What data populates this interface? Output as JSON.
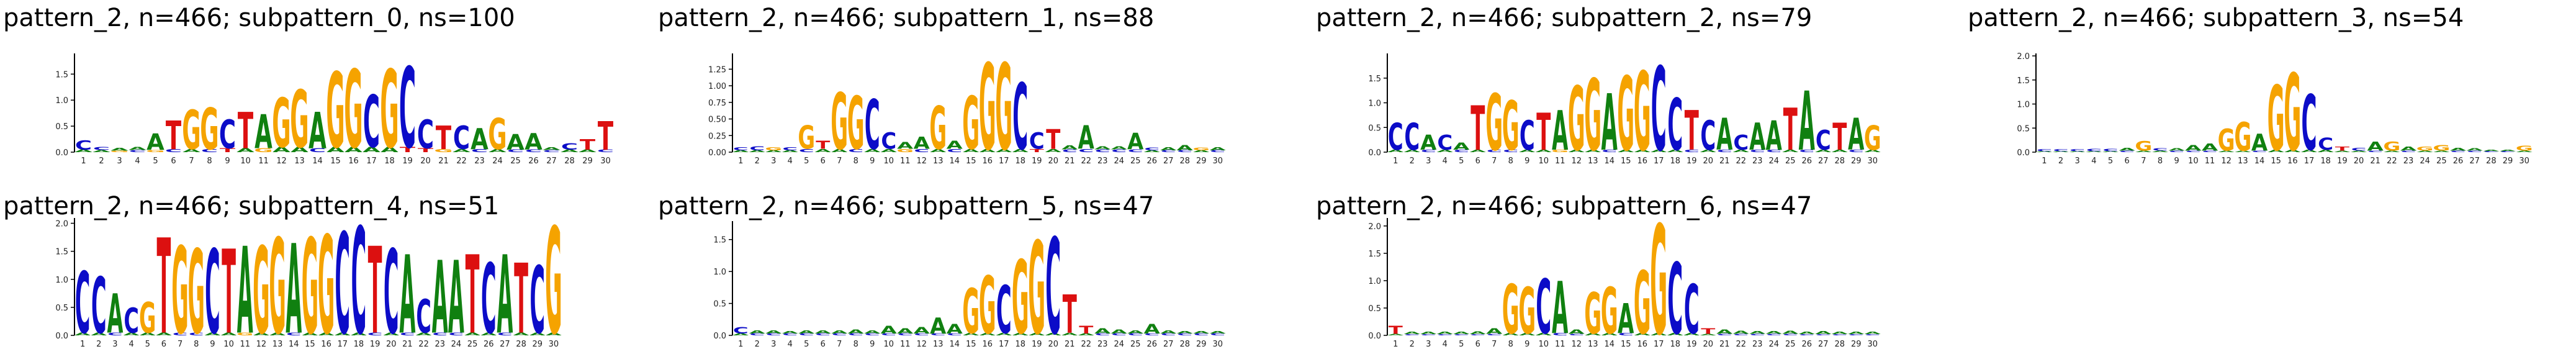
{
  "colors": {
    "A": "#108010",
    "C": "#0c0cc8",
    "G": "#f5a300",
    "T": "#dc1010"
  },
  "chart_data": [
    {
      "type": "sequence-logo",
      "title": "pattern_2, n=466; subpattern_0, ns=100",
      "x_ticks": [
        "1",
        "2",
        "3",
        "4",
        "5",
        "6",
        "7",
        "8",
        "9",
        "10",
        "11",
        "12",
        "13",
        "14",
        "15",
        "16",
        "17",
        "18",
        "19",
        "20",
        "21",
        "22",
        "23",
        "24",
        "25",
        "26",
        "27",
        "28",
        "29",
        "30"
      ],
      "y_ticks": [
        "0.0",
        "0.5",
        "1.0",
        "1.5"
      ],
      "ylim": [
        0,
        1.85
      ],
      "positions": [
        {
          "C": 0.18,
          "A": 0.05
        },
        {
          "C": 0.06,
          "A": 0.04
        },
        {
          "A": 0.05,
          "G": 0.03
        },
        {
          "A": 0.06,
          "C": 0.04
        },
        {
          "A": 0.32,
          "G": 0.04
        },
        {
          "T": 0.55,
          "C": 0.06
        },
        {
          "G": 0.75,
          "A": 0.06
        },
        {
          "G": 0.8,
          "C": 0.06
        },
        {
          "C": 0.55,
          "T": 0.08
        },
        {
          "T": 0.7,
          "A": 0.08
        },
        {
          "A": 0.65,
          "G": 0.08
        },
        {
          "G": 0.95,
          "A": 0.1
        },
        {
          "G": 1.1,
          "A": 0.1
        },
        {
          "A": 0.7,
          "C": 0.08
        },
        {
          "G": 1.45,
          "A": 0.1
        },
        {
          "G": 1.5,
          "A": 0.1
        },
        {
          "C": 1.0,
          "A": 0.1
        },
        {
          "G": 1.5,
          "A": 0.1
        },
        {
          "C": 1.55,
          "T": 0.1
        },
        {
          "C": 0.55,
          "T": 0.08
        },
        {
          "T": 0.45,
          "G": 0.06
        },
        {
          "C": 0.45,
          "A": 0.06
        },
        {
          "A": 0.4,
          "C": 0.06
        },
        {
          "G": 0.6,
          "A": 0.06
        },
        {
          "A": 0.3,
          "C": 0.05
        },
        {
          "A": 0.32,
          "C": 0.05
        },
        {
          "A": 0.05,
          "C": 0.04
        },
        {
          "C": 0.12,
          "A": 0.05
        },
        {
          "T": 0.2,
          "A": 0.05
        },
        {
          "T": 0.55,
          "C": 0.05
        }
      ]
    },
    {
      "type": "sequence-logo",
      "title": "pattern_2, n=466; subpattern_1, ns=88",
      "x_ticks": [
        "1",
        "2",
        "3",
        "4",
        "5",
        "6",
        "7",
        "8",
        "9",
        "10",
        "11",
        "12",
        "13",
        "14",
        "15",
        "16",
        "17",
        "18",
        "19",
        "20",
        "21",
        "22",
        "23",
        "24",
        "25",
        "26",
        "27",
        "28",
        "29",
        "30"
      ],
      "y_ticks": [
        "0.00",
        "0.25",
        "0.50",
        "0.75",
        "1.00",
        "1.25"
      ],
      "ylim": [
        0,
        1.45
      ],
      "positions": [
        {
          "C": 0.05,
          "A": 0.03
        },
        {
          "C": 0.06,
          "A": 0.03
        },
        {
          "G": 0.05,
          "A": 0.03
        },
        {
          "C": 0.05,
          "A": 0.03
        },
        {
          "G": 0.35,
          "C": 0.05
        },
        {
          "T": 0.12,
          "A": 0.05
        },
        {
          "G": 0.85,
          "A": 0.05
        },
        {
          "G": 0.8,
          "C": 0.05
        },
        {
          "C": 0.75,
          "A": 0.05
        },
        {
          "C": 0.25,
          "A": 0.05
        },
        {
          "A": 0.1,
          "G": 0.05
        },
        {
          "A": 0.18,
          "C": 0.05
        },
        {
          "G": 0.65,
          "A": 0.05
        },
        {
          "A": 0.12,
          "C": 0.05
        },
        {
          "G": 0.8,
          "A": 0.05
        },
        {
          "G": 1.3,
          "A": 0.05
        },
        {
          "G": 1.3,
          "A": 0.05
        },
        {
          "C": 1.0,
          "A": 0.05
        },
        {
          "C": 0.25,
          "T": 0.05
        },
        {
          "T": 0.3,
          "A": 0.05
        },
        {
          "A": 0.06,
          "C": 0.04
        },
        {
          "A": 0.35,
          "C": 0.05
        },
        {
          "A": 0.05,
          "C": 0.04
        },
        {
          "A": 0.05,
          "C": 0.04
        },
        {
          "A": 0.25,
          "C": 0.04
        },
        {
          "C": 0.04,
          "A": 0.03
        },
        {
          "A": 0.05,
          "C": 0.03
        },
        {
          "A": 0.08,
          "C": 0.03
        },
        {
          "G": 0.04,
          "A": 0.03
        },
        {
          "A": 0.05,
          "C": 0.03
        }
      ]
    },
    {
      "type": "sequence-logo",
      "title": "pattern_2, n=466; subpattern_2, ns=79",
      "x_ticks": [
        "1",
        "2",
        "3",
        "4",
        "5",
        "6",
        "7",
        "8",
        "9",
        "10",
        "11",
        "12",
        "13",
        "14",
        "15",
        "16",
        "17",
        "18",
        "19",
        "20",
        "21",
        "22",
        "23",
        "24",
        "25",
        "26",
        "27",
        "28",
        "29",
        "30"
      ],
      "y_ticks": [
        "0.0",
        "0.5",
        "1.0",
        "1.5"
      ],
      "ylim": [
        0,
        1.95
      ],
      "positions": [
        {
          "C": 0.55,
          "A": 0.05
        },
        {
          "C": 0.55,
          "A": 0.05
        },
        {
          "A": 0.3,
          "C": 0.05
        },
        {
          "C": 0.3,
          "A": 0.05
        },
        {
          "A": 0.15,
          "C": 0.05
        },
        {
          "T": 0.9,
          "A": 0.05
        },
        {
          "G": 1.15,
          "C": 0.05
        },
        {
          "G": 1.0,
          "C": 0.05
        },
        {
          "C": 0.6,
          "A": 0.05
        },
        {
          "T": 0.75,
          "A": 0.05
        },
        {
          "A": 0.8,
          "G": 0.05
        },
        {
          "G": 1.3,
          "A": 0.05
        },
        {
          "G": 1.45,
          "A": 0.05
        },
        {
          "A": 1.15,
          "C": 0.05
        },
        {
          "G": 1.5,
          "A": 0.05
        },
        {
          "G": 1.6,
          "A": 0.05
        },
        {
          "C": 1.7,
          "A": 0.05
        },
        {
          "C": 1.05,
          "A": 0.05
        },
        {
          "T": 0.8,
          "C": 0.05
        },
        {
          "C": 0.6,
          "A": 0.05
        },
        {
          "A": 0.65,
          "C": 0.05
        },
        {
          "C": 0.3,
          "A": 0.05
        },
        {
          "A": 0.55,
          "C": 0.05
        },
        {
          "A": 0.6,
          "C": 0.05
        },
        {
          "T": 0.85,
          "A": 0.05
        },
        {
          "A": 1.2,
          "C": 0.05
        },
        {
          "C": 0.4,
          "A": 0.05
        },
        {
          "T": 0.55,
          "A": 0.05
        },
        {
          "A": 0.65,
          "C": 0.05
        },
        {
          "G": 0.5,
          "A": 0.05
        }
      ]
    },
    {
      "type": "sequence-logo",
      "title": "pattern_2, n=466; subpattern_3, ns=54",
      "x_ticks": [
        "1",
        "2",
        "3",
        "4",
        "5",
        "6",
        "7",
        "8",
        "9",
        "10",
        "11",
        "12",
        "13",
        "14",
        "15",
        "16",
        "17",
        "18",
        "19",
        "20",
        "21",
        "22",
        "23",
        "24",
        "25",
        "26",
        "27",
        "28",
        "29",
        "30"
      ],
      "y_ticks": [
        "0.0",
        "0.5",
        "1.0",
        "1.5",
        "2.0"
      ],
      "ylim": [
        0,
        2.0
      ],
      "positions": [
        {
          "C": 0.04,
          "A": 0.02
        },
        {
          "C": 0.04,
          "A": 0.02
        },
        {
          "C": 0.04,
          "A": 0.02
        },
        {
          "C": 0.05,
          "A": 0.02
        },
        {
          "C": 0.05,
          "A": 0.02
        },
        {
          "A": 0.06,
          "C": 0.03
        },
        {
          "G": 0.2,
          "A": 0.03
        },
        {
          "C": 0.05,
          "A": 0.03
        },
        {
          "A": 0.05,
          "C": 0.03
        },
        {
          "A": 0.12,
          "C": 0.03
        },
        {
          "A": 0.15,
          "C": 0.03
        },
        {
          "G": 0.45,
          "A": 0.03
        },
        {
          "G": 0.6,
          "A": 0.03
        },
        {
          "A": 0.35,
          "C": 0.03
        },
        {
          "G": 1.35,
          "A": 0.05
        },
        {
          "G": 1.6,
          "A": 0.05
        },
        {
          "C": 1.15,
          "A": 0.05
        },
        {
          "C": 0.25,
          "A": 0.05
        },
        {
          "T": 0.08,
          "A": 0.03
        },
        {
          "C": 0.06,
          "A": 0.03
        },
        {
          "A": 0.18,
          "C": 0.03
        },
        {
          "G": 0.18,
          "A": 0.03
        },
        {
          "A": 0.08,
          "C": 0.03
        },
        {
          "G": 0.08,
          "A": 0.03
        },
        {
          "G": 0.12,
          "A": 0.03
        },
        {
          "A": 0.06,
          "C": 0.03
        },
        {
          "A": 0.05,
          "C": 0.03
        },
        {
          "A": 0.03,
          "C": 0.02
        },
        {
          "A": 0.03,
          "C": 0.02
        },
        {
          "G": 0.1,
          "A": 0.03
        }
      ]
    },
    {
      "type": "sequence-logo",
      "title": "pattern_2, n=466; subpattern_4, ns=51",
      "x_ticks": [
        "1",
        "2",
        "3",
        "4",
        "5",
        "6",
        "7",
        "8",
        "9",
        "10",
        "11",
        "12",
        "13",
        "14",
        "15",
        "16",
        "17",
        "18",
        "19",
        "20",
        "21",
        "22",
        "23",
        "24",
        "25",
        "26",
        "27",
        "28",
        "29",
        "30"
      ],
      "y_ticks": [
        "0.0",
        "0.5",
        "1.0",
        "1.5",
        "2.0"
      ],
      "ylim": [
        0,
        2.05
      ],
      "positions": [
        {
          "C": 1.1,
          "A": 0.05
        },
        {
          "C": 1.0,
          "A": 0.05
        },
        {
          "A": 0.7,
          "C": 0.05
        },
        {
          "C": 0.45,
          "A": 0.05
        },
        {
          "G": 0.55,
          "A": 0.05
        },
        {
          "T": 1.7,
          "A": 0.05
        },
        {
          "G": 1.55,
          "C": 0.05
        },
        {
          "G": 1.5,
          "C": 0.05
        },
        {
          "C": 1.5,
          "A": 0.05
        },
        {
          "T": 1.5,
          "A": 0.05
        },
        {
          "A": 1.55,
          "G": 0.05
        },
        {
          "G": 1.55,
          "A": 0.05
        },
        {
          "G": 1.7,
          "A": 0.05
        },
        {
          "A": 1.6,
          "C": 0.05
        },
        {
          "G": 1.7,
          "A": 0.05
        },
        {
          "G": 1.75,
          "A": 0.05
        },
        {
          "C": 1.8,
          "A": 0.05
        },
        {
          "C": 1.9,
          "A": 0.05
        },
        {
          "T": 1.55,
          "C": 0.05
        },
        {
          "C": 1.5,
          "A": 0.05
        },
        {
          "A": 1.4,
          "C": 0.05
        },
        {
          "C": 0.6,
          "A": 0.05
        },
        {
          "A": 1.3,
          "C": 0.05
        },
        {
          "A": 1.3,
          "C": 0.05
        },
        {
          "T": 1.4,
          "A": 0.05
        },
        {
          "C": 1.25,
          "A": 0.05
        },
        {
          "A": 1.4,
          "C": 0.05
        },
        {
          "T": 1.25,
          "A": 0.05
        },
        {
          "C": 1.2,
          "A": 0.05
        },
        {
          "G": 1.9,
          "A": 0.05
        }
      ]
    },
    {
      "type": "sequence-logo",
      "title": "pattern_2, n=466; subpattern_5, ns=47",
      "x_ticks": [
        "1",
        "2",
        "3",
        "4",
        "5",
        "6",
        "7",
        "8",
        "9",
        "10",
        "11",
        "12",
        "13",
        "14",
        "15",
        "16",
        "17",
        "18",
        "19",
        "20",
        "21",
        "22",
        "23",
        "24",
        "25",
        "26",
        "27",
        "28",
        "29",
        "30"
      ],
      "y_ticks": [
        "0.0",
        "0.5",
        "1.0",
        "1.5"
      ],
      "ylim": [
        0,
        1.75
      ],
      "positions": [
        {
          "C": 0.1,
          "A": 0.03
        },
        {
          "A": 0.05,
          "C": 0.03
        },
        {
          "A": 0.05,
          "C": 0.03
        },
        {
          "A": 0.04,
          "C": 0.03
        },
        {
          "A": 0.05,
          "C": 0.03
        },
        {
          "A": 0.05,
          "C": 0.03
        },
        {
          "A": 0.05,
          "C": 0.03
        },
        {
          "A": 0.06,
          "C": 0.03
        },
        {
          "A": 0.05,
          "C": 0.03
        },
        {
          "A": 0.12,
          "C": 0.03
        },
        {
          "A": 0.08,
          "C": 0.03
        },
        {
          "A": 0.1,
          "C": 0.03
        },
        {
          "A": 0.25,
          "C": 0.03
        },
        {
          "A": 0.15,
          "C": 0.03
        },
        {
          "G": 0.7,
          "A": 0.04
        },
        {
          "G": 0.9,
          "A": 0.04
        },
        {
          "C": 0.75,
          "A": 0.04
        },
        {
          "G": 1.15,
          "A": 0.04
        },
        {
          "G": 1.45,
          "A": 0.04
        },
        {
          "C": 1.5,
          "A": 0.04
        },
        {
          "T": 0.6,
          "A": 0.04
        },
        {
          "T": 0.12,
          "A": 0.03
        },
        {
          "A": 0.08,
          "C": 0.03
        },
        {
          "A": 0.06,
          "C": 0.03
        },
        {
          "A": 0.05,
          "C": 0.03
        },
        {
          "A": 0.15,
          "C": 0.03
        },
        {
          "A": 0.05,
          "C": 0.03
        },
        {
          "A": 0.04,
          "C": 0.03
        },
        {
          "A": 0.04,
          "C": 0.03
        },
        {
          "A": 0.04,
          "C": 0.03
        }
      ]
    },
    {
      "type": "sequence-logo",
      "title": "pattern_2, n=466; subpattern_6, ns=47",
      "x_ticks": [
        "1",
        "2",
        "3",
        "4",
        "5",
        "6",
        "7",
        "8",
        "9",
        "10",
        "11",
        "12",
        "13",
        "14",
        "15",
        "16",
        "17",
        "18",
        "19",
        "20",
        "21",
        "22",
        "23",
        "24",
        "25",
        "26",
        "27",
        "28",
        "29",
        "30"
      ],
      "y_ticks": [
        "0.0",
        "0.5",
        "1.0",
        "1.5",
        "2.0"
      ],
      "ylim": [
        0,
        2.1
      ],
      "positions": [
        {
          "T": 0.15,
          "A": 0.03
        },
        {
          "A": 0.04,
          "C": 0.02
        },
        {
          "A": 0.04,
          "C": 0.02
        },
        {
          "A": 0.04,
          "C": 0.02
        },
        {
          "A": 0.04,
          "C": 0.02
        },
        {
          "A": 0.05,
          "C": 0.02
        },
        {
          "A": 0.1,
          "C": 0.03
        },
        {
          "G": 0.9,
          "A": 0.04
        },
        {
          "G": 0.85,
          "A": 0.04
        },
        {
          "C": 1.0,
          "A": 0.04
        },
        {
          "A": 0.95,
          "C": 0.04
        },
        {
          "A": 0.08,
          "C": 0.03
        },
        {
          "G": 0.75,
          "A": 0.04
        },
        {
          "G": 0.85,
          "A": 0.04
        },
        {
          "A": 0.55,
          "C": 0.04
        },
        {
          "G": 1.15,
          "A": 0.04
        },
        {
          "G": 2.0,
          "A": 0.04
        },
        {
          "C": 1.3,
          "A": 0.04
        },
        {
          "C": 0.9,
          "A": 0.04
        },
        {
          "T": 0.1,
          "A": 0.03
        },
        {
          "A": 0.08,
          "C": 0.03
        },
        {
          "A": 0.06,
          "C": 0.03
        },
        {
          "A": 0.05,
          "C": 0.03
        },
        {
          "A": 0.05,
          "C": 0.03
        },
        {
          "A": 0.06,
          "C": 0.03
        },
        {
          "A": 0.04,
          "C": 0.02
        },
        {
          "A": 0.06,
          "C": 0.02
        },
        {
          "A": 0.04,
          "C": 0.02
        },
        {
          "A": 0.04,
          "C": 0.02
        },
        {
          "A": 0.04,
          "C": 0.02
        }
      ]
    }
  ]
}
